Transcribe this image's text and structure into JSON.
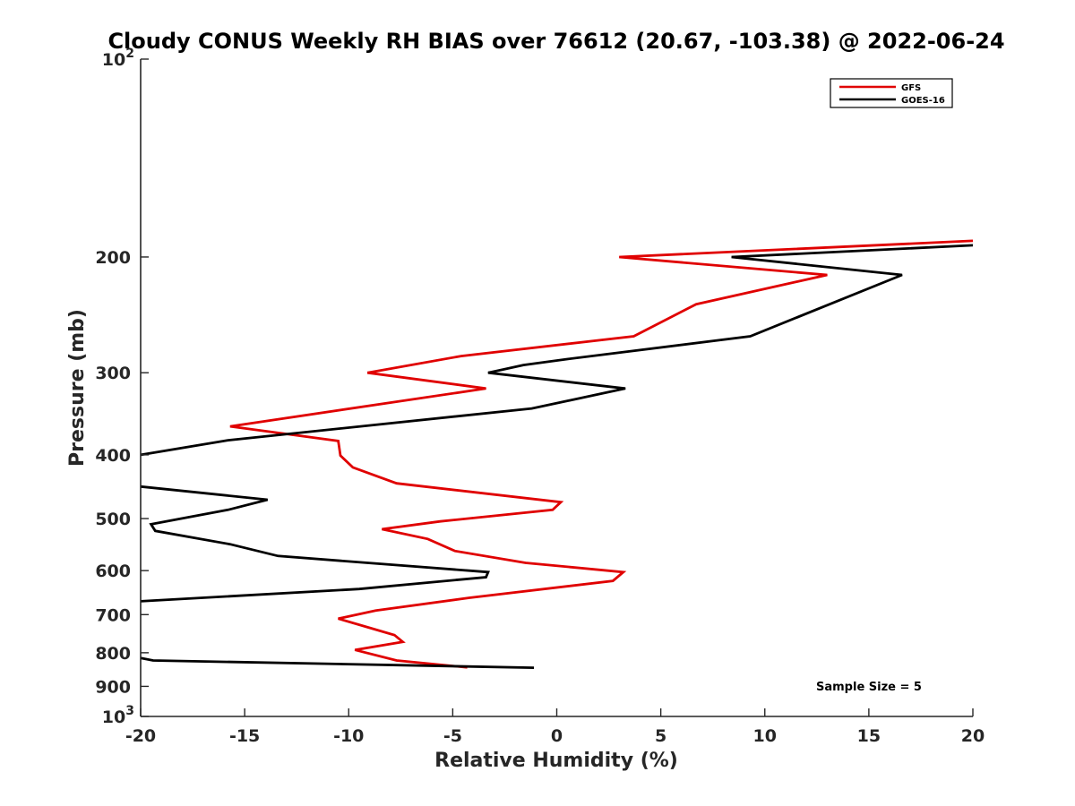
{
  "chart_data": {
    "type": "line",
    "title": "Cloudy CONUS Weekly RH BIAS over 76612 (20.67, -103.38) @ 2022-06-24",
    "xlabel": "Relative Humidity (%)",
    "ylabel": "Pressure (mb)",
    "xlim": [
      -20,
      20
    ],
    "ylim": [
      100,
      1000
    ],
    "y_scale": "log",
    "y_reversed": true,
    "grid": false,
    "legend_position": "top-right",
    "x_ticks": [
      {
        "value": -20,
        "label": "-20"
      },
      {
        "value": -15,
        "label": "-15"
      },
      {
        "value": -10,
        "label": "-10"
      },
      {
        "value": -5,
        "label": "-5"
      },
      {
        "value": 0,
        "label": "0"
      },
      {
        "value": 5,
        "label": "5"
      },
      {
        "value": 10,
        "label": "10"
      },
      {
        "value": 15,
        "label": "15"
      },
      {
        "value": 20,
        "label": "20"
      }
    ],
    "y_ticks": [
      {
        "value": 100,
        "base": "10",
        "exp": "2"
      },
      {
        "value": 200,
        "base": "200",
        "exp": ""
      },
      {
        "value": 300,
        "base": "300",
        "exp": ""
      },
      {
        "value": 400,
        "base": "400",
        "exp": ""
      },
      {
        "value": 500,
        "base": "500",
        "exp": ""
      },
      {
        "value": 600,
        "base": "600",
        "exp": ""
      },
      {
        "value": 700,
        "base": "700",
        "exp": ""
      },
      {
        "value": 800,
        "base": "800",
        "exp": ""
      },
      {
        "value": 900,
        "base": "900",
        "exp": ""
      },
      {
        "value": 1000,
        "base": "10",
        "exp": "3"
      }
    ],
    "series": [
      {
        "name": "GFS",
        "color": "#e00000",
        "points": [
          [
            20,
            189
          ],
          [
            3,
            200
          ],
          [
            13,
            213
          ],
          [
            6.7,
            236
          ],
          [
            3.7,
            264
          ],
          [
            -4.6,
            283
          ],
          [
            -9.1,
            300
          ],
          [
            -3.4,
            317
          ],
          [
            -15.7,
            362
          ],
          [
            -10.5,
            381
          ],
          [
            -10.4,
            401
          ],
          [
            -9.8,
            418
          ],
          [
            -7.7,
            442
          ],
          [
            0.2,
            472
          ],
          [
            -0.2,
            485
          ],
          [
            -5.6,
            505
          ],
          [
            -8.4,
            519
          ],
          [
            -6.2,
            537
          ],
          [
            -4.9,
            560
          ],
          [
            -1.5,
            584
          ],
          [
            3.2,
            603
          ],
          [
            2.7,
            622
          ],
          [
            -4.2,
            660
          ],
          [
            -8.7,
            690
          ],
          [
            -10.5,
            710
          ],
          [
            -9.0,
            733
          ],
          [
            -7.8,
            752
          ],
          [
            -7.4,
            770
          ],
          [
            -9.7,
            792
          ],
          [
            -7.7,
            822
          ],
          [
            -4.3,
            842
          ]
        ]
      },
      {
        "name": "GOES-16",
        "color": "#000000",
        "points": [
          [
            20,
            192
          ],
          [
            8.4,
            200
          ],
          [
            16.6,
            213
          ],
          [
            9.3,
            264
          ],
          [
            0.5,
            286
          ],
          [
            -1.6,
            292
          ],
          [
            -3.3,
            300
          ],
          [
            3.3,
            317
          ],
          [
            -1.2,
            340
          ],
          [
            -15.8,
            380
          ],
          [
            -20,
            400
          ],
          [
            null,
            420
          ],
          [
            -20,
            447
          ],
          [
            -13.9,
            468
          ],
          [
            -15.8,
            485
          ],
          [
            -19.5,
            510
          ],
          [
            -19.3,
            522
          ],
          [
            -15.7,
            547
          ],
          [
            -13.4,
            570
          ],
          [
            -3.3,
            603
          ],
          [
            -3.4,
            614
          ],
          [
            -9.5,
            640
          ],
          [
            -20,
            668
          ],
          [
            null,
            760
          ],
          [
            -20,
            815
          ],
          [
            -19.4,
            822
          ],
          [
            -1.1,
            843
          ]
        ]
      }
    ],
    "annotations": [
      {
        "text": "Sample Size = 5"
      }
    ]
  }
}
